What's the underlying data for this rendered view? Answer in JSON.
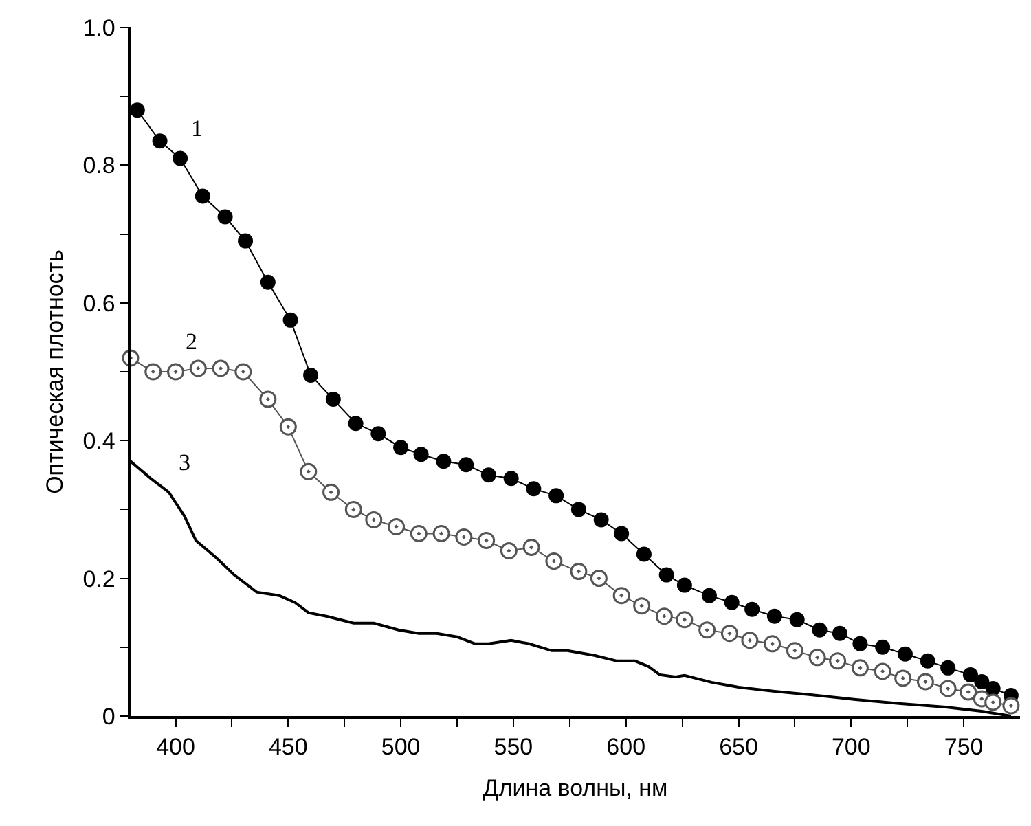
{
  "chart_data": {
    "type": "line",
    "xlabel": "Длина волны, нм",
    "ylabel": "Оптическая плотность",
    "xlim": [
      380,
      775
    ],
    "ylim": [
      0,
      1.0
    ],
    "xticks": [
      400,
      {
        "value": 425,
        "label": null
      },
      450,
      {
        "value": 475,
        "label": null
      },
      500,
      {
        "value": 525,
        "label": null
      },
      550,
      {
        "value": 575,
        "label": null
      },
      600,
      {
        "value": 625,
        "label": null
      },
      650,
      {
        "value": 675,
        "label": null
      },
      700,
      {
        "value": 725,
        "label": null
      },
      750
    ],
    "yticks": [
      0,
      {
        "value": 0.1,
        "label": null
      },
      0.2,
      {
        "value": 0.3,
        "label": null
      },
      0.4,
      {
        "value": 0.5,
        "label": null
      },
      0.6,
      {
        "value": 0.7,
        "label": null
      },
      0.8,
      {
        "value": 0.9,
        "label": null
      },
      {
        "value": 1.0,
        "label": "1.0"
      }
    ],
    "legend": false,
    "series": [
      {
        "name": "1",
        "color": "#000000",
        "marker": "circle",
        "line_style": "solid",
        "x": [
          383,
          393,
          402,
          412,
          422,
          431,
          441,
          451,
          460,
          470,
          480,
          490,
          500,
          509,
          519,
          529,
          539,
          549,
          559,
          569,
          579,
          589,
          598,
          608,
          618,
          626,
          637,
          647,
          656,
          666,
          676,
          686,
          695,
          704,
          714,
          724,
          734,
          743,
          753,
          758,
          763,
          771
        ],
        "values": [
          0.88,
          0.835,
          0.81,
          0.755,
          0.725,
          0.69,
          0.63,
          0.575,
          0.495,
          0.46,
          0.425,
          0.41,
          0.39,
          0.38,
          0.37,
          0.365,
          0.35,
          0.345,
          0.33,
          0.32,
          0.3,
          0.285,
          0.265,
          0.235,
          0.205,
          0.19,
          0.175,
          0.165,
          0.155,
          0.145,
          0.14,
          0.125,
          0.12,
          0.105,
          0.1,
          0.09,
          0.08,
          0.07,
          0.06,
          0.05,
          0.04,
          0.03
        ]
      },
      {
        "name": "2",
        "color": "#555555",
        "marker": "circle-dot",
        "line_style": "solid",
        "x": [
          380,
          390,
          400,
          410,
          420,
          430,
          441,
          450,
          459,
          469,
          479,
          488,
          498,
          508,
          518,
          528,
          538,
          548,
          558,
          568,
          579,
          588,
          598,
          607,
          617,
          626,
          636,
          646,
          655,
          665,
          675,
          685,
          694,
          704,
          714,
          723,
          733,
          743,
          752,
          758,
          763,
          771
        ],
        "values": [
          0.52,
          0.5,
          0.5,
          0.505,
          0.505,
          0.5,
          0.46,
          0.42,
          0.355,
          0.325,
          0.3,
          0.285,
          0.275,
          0.265,
          0.265,
          0.26,
          0.255,
          0.24,
          0.245,
          0.225,
          0.21,
          0.2,
          0.175,
          0.16,
          0.145,
          0.14,
          0.125,
          0.12,
          0.11,
          0.105,
          0.095,
          0.085,
          0.08,
          0.07,
          0.065,
          0.055,
          0.05,
          0.04,
          0.035,
          0.025,
          0.02,
          0.015
        ]
      },
      {
        "name": "3",
        "color": "#000000",
        "marker": "none",
        "line_style": "solid",
        "x": [
          380,
          389,
          397,
          404,
          409,
          418,
          426,
          436,
          446,
          453,
          459,
          467,
          479,
          488,
          499,
          508,
          516,
          525,
          533,
          539,
          549,
          557,
          567,
          574,
          586,
          596,
          604,
          610,
          615,
          622,
          626,
          638,
          650,
          666,
          682,
          702,
          722,
          742,
          758,
          771
        ],
        "values": [
          0.37,
          0.345,
          0.325,
          0.29,
          0.255,
          0.23,
          0.205,
          0.18,
          0.175,
          0.165,
          0.15,
          0.145,
          0.135,
          0.135,
          0.125,
          0.12,
          0.12,
          0.115,
          0.105,
          0.105,
          0.11,
          0.105,
          0.095,
          0.095,
          0.088,
          0.08,
          0.08,
          0.072,
          0.06,
          0.057,
          0.059,
          0.049,
          0.042,
          0.036,
          0.031,
          0.024,
          0.018,
          0.013,
          0.007,
          0.0
        ]
      }
    ]
  }
}
